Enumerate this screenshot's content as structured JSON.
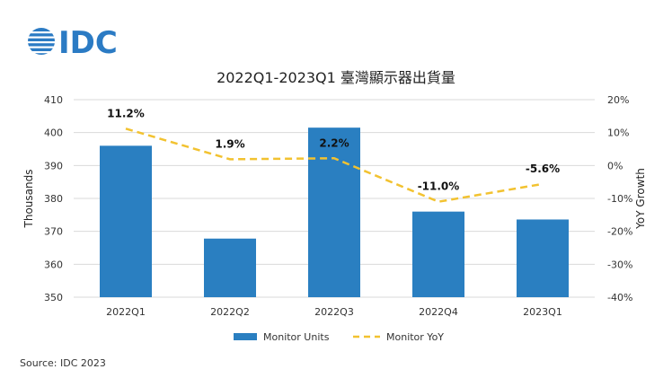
{
  "logo": {
    "text": "IDC",
    "color": "#2b7bc4"
  },
  "source": "Source: IDC 2023",
  "chart_data": {
    "type": "bar",
    "title": "2022Q1-2023Q1 臺灣顯示器出貨量",
    "categories": [
      "2022Q1",
      "2022Q2",
      "2022Q3",
      "2022Q4",
      "2023Q1"
    ],
    "ylabel": "Thousands",
    "y2label": "YoY Growth",
    "ylim": [
      350,
      410
    ],
    "yticks": [
      350,
      360,
      370,
      380,
      390,
      400,
      410
    ],
    "y2lim": [
      -40,
      20
    ],
    "y2ticks": [
      "-40%",
      "-30%",
      "-20%",
      "-10%",
      "0%",
      "10%",
      "20%"
    ],
    "grid": true,
    "legend_position": "bottom",
    "series": [
      {
        "name": "Monitor Units",
        "kind": "bar",
        "color": "#2a7fc1",
        "values": [
          396,
          367.8,
          401.5,
          376,
          373.6
        ]
      },
      {
        "name": "Monitor YoY",
        "kind": "line",
        "style": "dashed",
        "color": "#f2c230",
        "axis": "right",
        "values": [
          11.2,
          1.9,
          2.2,
          -11.0,
          -5.6
        ],
        "labels": [
          "11.2%",
          "1.9%",
          "2.2%",
          "-11.0%",
          "-5.6%"
        ]
      }
    ]
  }
}
